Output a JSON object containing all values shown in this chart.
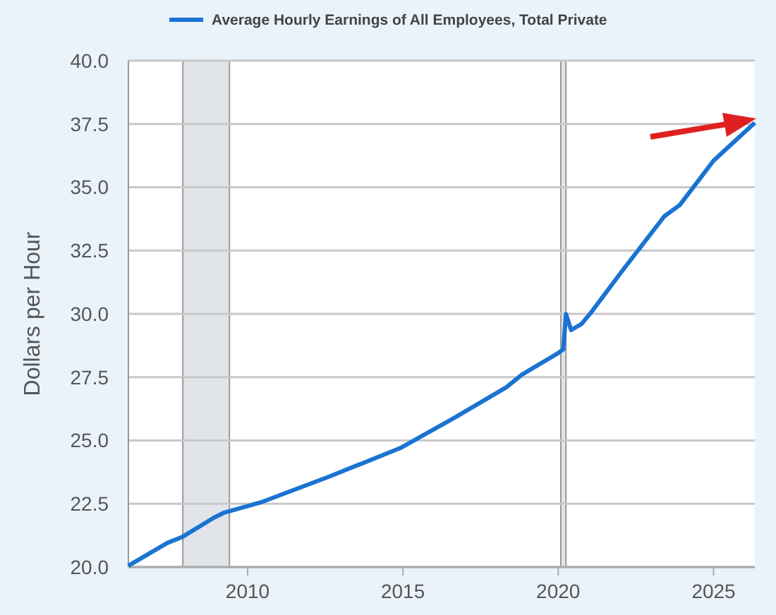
{
  "chart_data": {
    "type": "line",
    "ylabel": "Dollars per Hour",
    "x": [
      "2006-03",
      "2007-06",
      "2007-12",
      "2008-12",
      "2009-04",
      "2010-06",
      "2012-08",
      "2014-12",
      "2016-09",
      "2018-05",
      "2018-11",
      "2020-01",
      "2020-03",
      "2020-04",
      "2020-06",
      "2020-10",
      "2021-02",
      "2022-01",
      "2023-06",
      "2023-12",
      "2025-01",
      "2026-05"
    ],
    "series": [
      {
        "name": "Average Hourly Earnings of All Employees, Total Private",
        "color": "#1a73d2",
        "values": [
          20.05,
          20.95,
          21.2,
          21.95,
          22.15,
          22.55,
          23.55,
          24.7,
          25.9,
          27.1,
          27.6,
          28.45,
          28.6,
          29.99,
          29.36,
          29.6,
          30.1,
          31.6,
          33.85,
          34.3,
          36.05,
          37.55
        ]
      }
    ],
    "xlim": [
      "2006-03",
      "2026-05"
    ],
    "xticks": [
      "2010",
      "2015",
      "2020",
      "2025"
    ],
    "ylim": [
      20,
      40
    ],
    "yticks": [
      {
        "value": 20,
        "label": "20.0"
      },
      {
        "value": 22.5,
        "label": "22.5"
      },
      {
        "value": 25,
        "label": "25.0"
      },
      {
        "value": 27.5,
        "label": "27.5"
      },
      {
        "value": 30,
        "label": "30.0"
      },
      {
        "value": 32.5,
        "label": "32.5"
      },
      {
        "value": 35,
        "label": "35.0"
      },
      {
        "value": 37.5,
        "label": "37.5"
      },
      {
        "value": 40,
        "label": "40.0"
      }
    ],
    "bands": [
      {
        "axis": "x",
        "from": "2007-12",
        "to": "2009-06",
        "color": "#e1e5ea"
      },
      {
        "axis": "x",
        "from": "2020-02",
        "to": "2020-04",
        "color": "#e1e5ea"
      }
    ],
    "grid": "y",
    "legend": "top left",
    "line_style": "solid",
    "marker": "none"
  }
}
